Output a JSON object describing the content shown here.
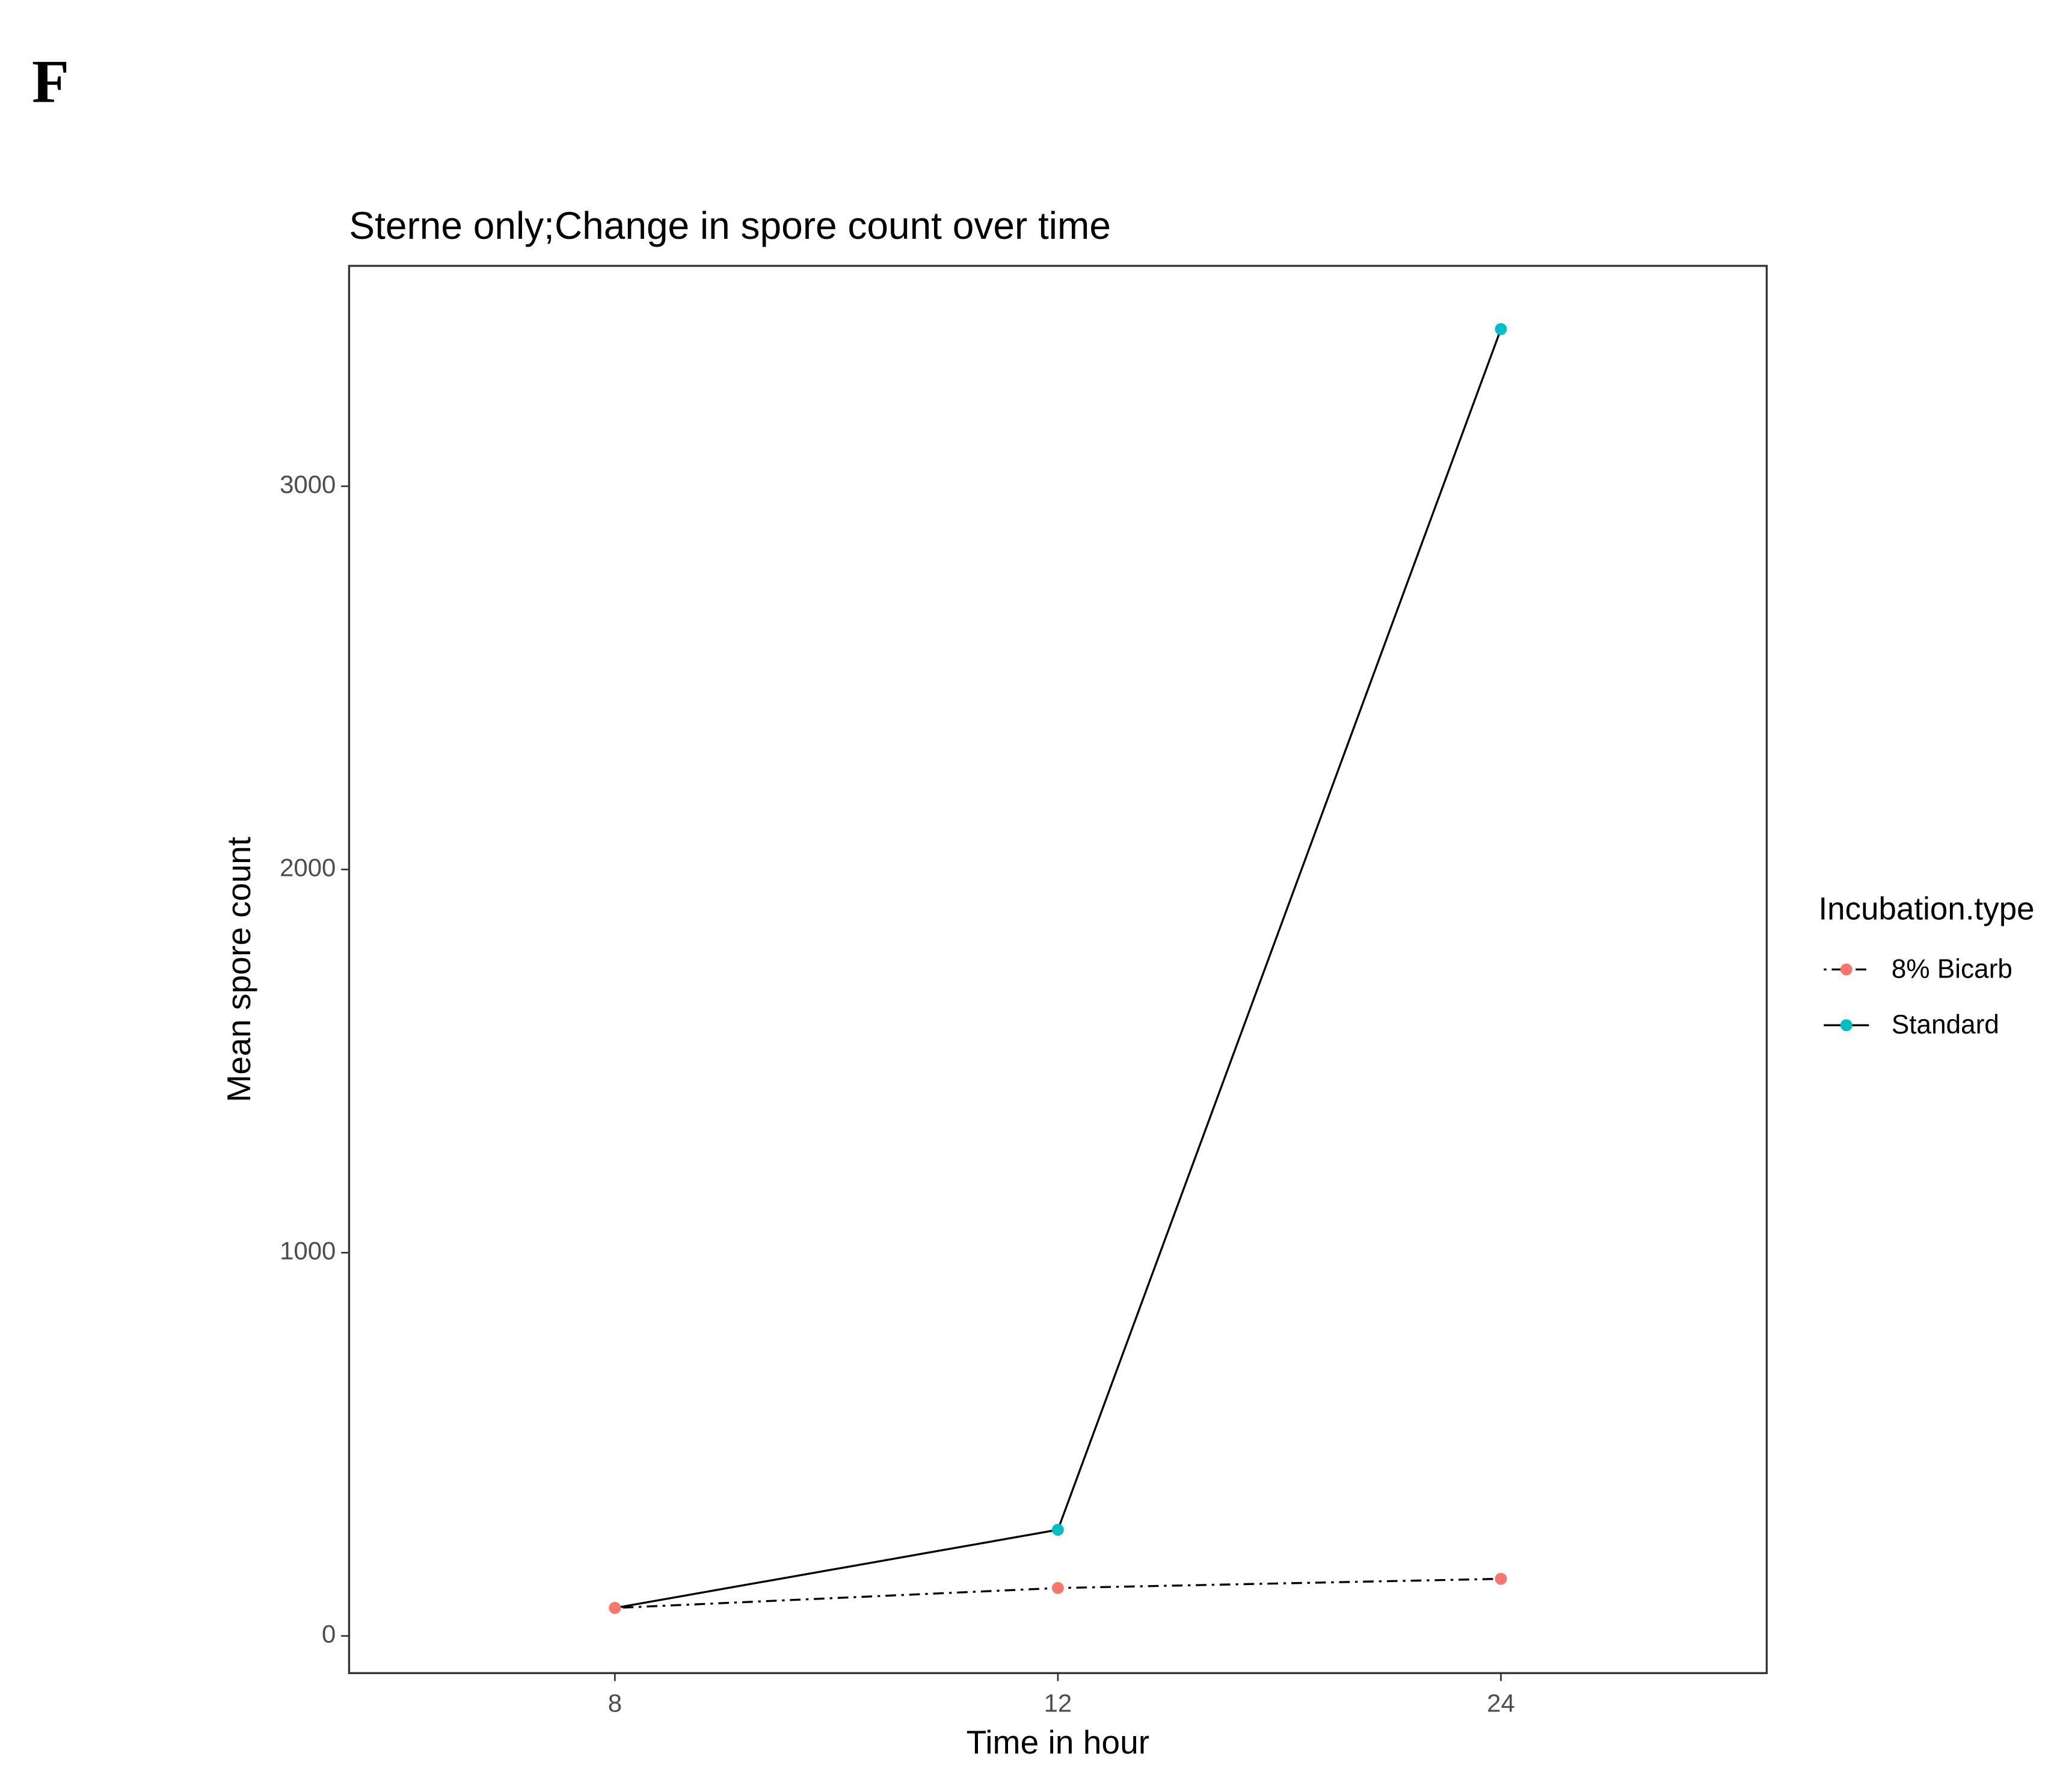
{
  "panel_label": "F",
  "chart_data": {
    "type": "line",
    "title": "Sterne only;Change in  spore count over time",
    "x_label": "Time in hour",
    "y_label": "Mean spore count",
    "categories": [
      "8",
      "12",
      "24"
    ],
    "ylim": [
      -97,
      3575
    ],
    "yticks": [
      0,
      1000,
      2000,
      3000
    ],
    "legend_title": "Incubation.type",
    "legend_position": "right",
    "series": [
      {
        "name": "8% Bicarb",
        "color": "#F8766D",
        "line_color": "#000000",
        "linetype": "dotdash",
        "values": [
          73,
          125,
          149
        ]
      },
      {
        "name": "Standard",
        "color": "#00BFC4",
        "line_color": "#000000",
        "linetype": "solid",
        "values": [
          73,
          277,
          3410
        ]
      }
    ]
  }
}
